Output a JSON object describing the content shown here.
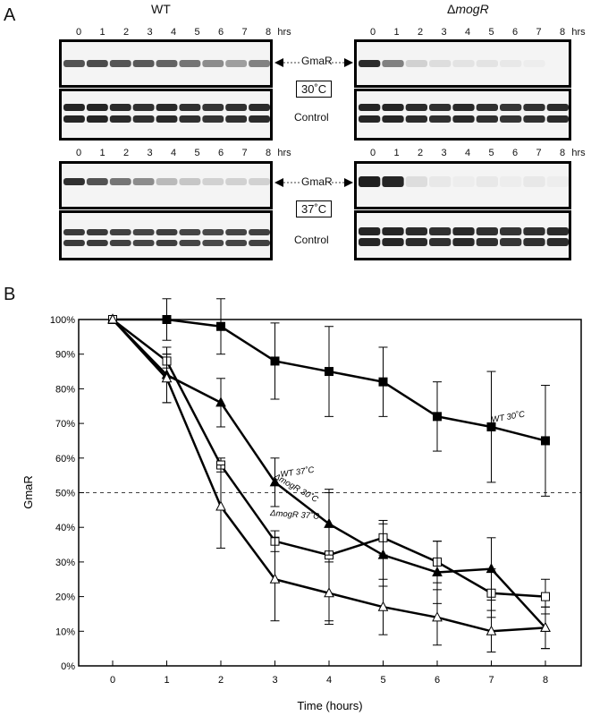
{
  "panel_a": {
    "letter": "A",
    "wt_header": "WT",
    "mogr_header_delta": "Δ",
    "mogr_header_gene": "mogR",
    "lanes": [
      "0",
      "1",
      "2",
      "3",
      "4",
      "5",
      "6",
      "7",
      "8"
    ],
    "lanes_unit": "hrs",
    "gmar_label": "GmaR",
    "control_label": "Control",
    "temp_top": "30˚C",
    "temp_bottom": "37˚C",
    "band_intensity": {
      "wt_30_gmar": [
        0.75,
        0.78,
        0.74,
        0.72,
        0.68,
        0.6,
        0.5,
        0.42,
        0.55
      ],
      "mogr_30_gmar": [
        0.92,
        0.55,
        0.2,
        0.15,
        0.12,
        0.12,
        0.1,
        0.08,
        0.05
      ],
      "wt_37_gmar": [
        0.9,
        0.75,
        0.6,
        0.5,
        0.3,
        0.25,
        0.2,
        0.2,
        0.2
      ],
      "mogr_37_gmar": [
        0.98,
        0.95,
        0.15,
        0.1,
        0.08,
        0.1,
        0.08,
        0.1,
        0.08
      ]
    }
  },
  "panel_b": {
    "letter": "B"
  },
  "chart_data": {
    "type": "line",
    "xlabel": "Time (hours)",
    "ylabel": "GmaR",
    "x": [
      0,
      1,
      2,
      3,
      4,
      5,
      6,
      7,
      8
    ],
    "xlim": [
      0,
      8
    ],
    "ylim": [
      0,
      100
    ],
    "yticks": [
      "0%",
      "10%",
      "20%",
      "30%",
      "40%",
      "50%",
      "60%",
      "70%",
      "80%",
      "90%",
      "100%"
    ],
    "reference_line": 50,
    "series": [
      {
        "name": "WT 30˚C",
        "marker": "filled-square",
        "values": [
          100,
          100,
          98,
          88,
          85,
          82,
          72,
          69,
          65
        ],
        "errors": [
          0,
          6,
          8,
          11,
          13,
          10,
          10,
          16,
          16
        ]
      },
      {
        "name": "WT 37˚C",
        "marker": "open-square",
        "values": [
          100,
          88,
          58,
          36,
          32,
          37,
          30,
          21,
          20
        ],
        "errors": [
          0,
          2,
          2,
          3,
          19,
          5,
          6,
          7,
          5
        ]
      },
      {
        "name": "ΔmogR 30˚C",
        "marker": "filled-triangle",
        "values": [
          100,
          84,
          76,
          53,
          41,
          32,
          27,
          28,
          11
        ],
        "errors": [
          0,
          8,
          7,
          7,
          9,
          9,
          9,
          9,
          6
        ]
      },
      {
        "name": "ΔmogR 37˚C",
        "marker": "open-triangle",
        "values": [
          100,
          83,
          46,
          25,
          21,
          17,
          14,
          10,
          11
        ],
        "errors": [
          0,
          7,
          12,
          12,
          9,
          8,
          8,
          6,
          6
        ]
      }
    ]
  }
}
